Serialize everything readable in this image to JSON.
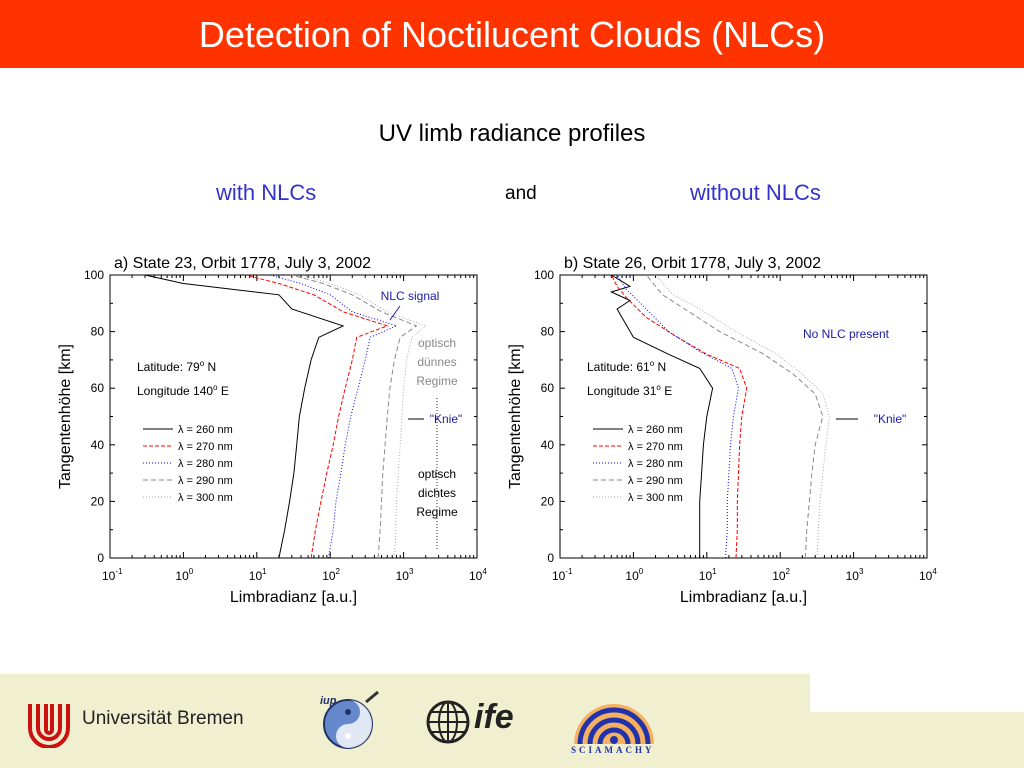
{
  "slide": {
    "title": "Detection of Noctilucent Clouds  (NLCs)",
    "subtitle": "UV limb radiance profiles",
    "with_label": "with NLCs",
    "and_label": "and",
    "without_label": "without NLCs"
  },
  "footer": {
    "university": "Universität Bremen",
    "logo_iup": "iup",
    "logo_ife": "ife",
    "logo_sciamachy": "SCIAMACHY"
  },
  "colors": {
    "title_bar": "#ff3300",
    "heading_blue": "#3333cc",
    "footer_bg": "#f0efd0",
    "annotation_blue": "#1a1aaa"
  },
  "chart_data": [
    {
      "type": "line",
      "title": "a) State 23, Orbit 1778, July 3, 2002",
      "xlabel": "Limbradianz [a.u.]",
      "ylabel": "Tangentenhöhe [km]",
      "xscale": "log",
      "xlim": [
        0.1,
        10000
      ],
      "ylim": [
        0,
        100
      ],
      "x_ticks": [
        {
          "base": "10",
          "exp": "-1"
        },
        {
          "base": "10",
          "exp": "0"
        },
        {
          "base": "10",
          "exp": "1"
        },
        {
          "base": "10",
          "exp": "2"
        },
        {
          "base": "10",
          "exp": "3"
        },
        {
          "base": "10",
          "exp": "4"
        }
      ],
      "y_ticks": [
        "0",
        "20",
        "40",
        "60",
        "80",
        "100"
      ],
      "info_lines": [
        {
          "text": "Latitude: 79",
          "sup": "o",
          "after": " N"
        },
        {
          "text": "Longitude 140",
          "sup": "o",
          "after": " E"
        }
      ],
      "legend_position": "left",
      "series": [
        {
          "name": "λ = 260 nm",
          "color": "#000000",
          "dash": "",
          "points": [
            [
              20,
              0
            ],
            [
              24,
              10
            ],
            [
              28,
              20
            ],
            [
              32,
              30
            ],
            [
              35,
              40
            ],
            [
              38,
              50
            ],
            [
              45,
              60
            ],
            [
              55,
              70
            ],
            [
              70,
              78
            ],
            [
              150,
              82
            ],
            [
              30,
              88
            ],
            [
              20,
              93
            ],
            [
              1,
              97
            ],
            [
              0.3,
              100
            ]
          ]
        },
        {
          "name": "λ = 270 nm",
          "color": "#ff0000",
          "dash": "4,2",
          "points": [
            [
              55,
              0
            ],
            [
              63,
              10
            ],
            [
              75,
              20
            ],
            [
              90,
              30
            ],
            [
              110,
              40
            ],
            [
              130,
              50
            ],
            [
              160,
              60
            ],
            [
              200,
              70
            ],
            [
              230,
              78
            ],
            [
              600,
              82
            ],
            [
              150,
              87
            ],
            [
              60,
              93
            ],
            [
              20,
              97
            ],
            [
              7,
              100
            ]
          ]
        },
        {
          "name": "λ = 280 nm",
          "color": "#0000ff",
          "dash": "1,2",
          "points": [
            [
              95,
              0
            ],
            [
              110,
              10
            ],
            [
              120,
              20
            ],
            [
              140,
              30
            ],
            [
              160,
              40
            ],
            [
              190,
              50
            ],
            [
              240,
              60
            ],
            [
              300,
              70
            ],
            [
              350,
              78
            ],
            [
              800,
              82
            ],
            [
              200,
              87
            ],
            [
              100,
              93
            ],
            [
              40,
              97
            ],
            [
              15,
              100
            ]
          ]
        },
        {
          "name": "λ = 290 nm",
          "color": "#888888",
          "dash": "5,3",
          "points": [
            [
              450,
              0
            ],
            [
              480,
              10
            ],
            [
              500,
              20
            ],
            [
              520,
              30
            ],
            [
              560,
              40
            ],
            [
              600,
              50
            ],
            [
              650,
              60
            ],
            [
              750,
              70
            ],
            [
              900,
              78
            ],
            [
              1500,
              82
            ],
            [
              500,
              87
            ],
            [
              200,
              93
            ],
            [
              80,
              97
            ],
            [
              30,
              100
            ]
          ]
        },
        {
          "name": "λ = 300 nm",
          "color": "#aaaaaa",
          "dash": "1,2",
          "points": [
            [
              750,
              0
            ],
            [
              780,
              10
            ],
            [
              800,
              20
            ],
            [
              850,
              30
            ],
            [
              900,
              40
            ],
            [
              950,
              50
            ],
            [
              1000,
              60
            ],
            [
              1100,
              70
            ],
            [
              1300,
              78
            ],
            [
              2000,
              82
            ],
            [
              600,
              87
            ],
            [
              250,
              93
            ],
            [
              100,
              97
            ],
            [
              40,
              100
            ]
          ]
        }
      ],
      "annotations": {
        "nlc_signal": "NLC signal",
        "thin_regime": [
          "optisch",
          "dünnes",
          "Regime"
        ],
        "knee": "\"Knie\"",
        "dense_regime": [
          "optisch",
          "dichtes",
          "Regime"
        ]
      }
    },
    {
      "type": "line",
      "title": "b) State 26, Orbit 1778, July 3, 2002",
      "xlabel": "Limbradianz [a.u.]",
      "ylabel": "Tangentenhöhe [km]",
      "xscale": "log",
      "xlim": [
        0.1,
        10000
      ],
      "ylim": [
        0,
        100
      ],
      "x_ticks": [
        {
          "base": "10",
          "exp": "-1"
        },
        {
          "base": "10",
          "exp": "0"
        },
        {
          "base": "10",
          "exp": "1"
        },
        {
          "base": "10",
          "exp": "2"
        },
        {
          "base": "10",
          "exp": "3"
        },
        {
          "base": "10",
          "exp": "4"
        }
      ],
      "y_ticks": [
        "0",
        "20",
        "40",
        "60",
        "80",
        "100"
      ],
      "info_lines": [
        {
          "text": "Latitude: 61",
          "sup": "o",
          "after": " N"
        },
        {
          "text": "Longitude 31",
          "sup": "o",
          "after": " E"
        }
      ],
      "legend_position": "left",
      "series": [
        {
          "name": "λ = 260 nm",
          "color": "#000000",
          "dash": "",
          "points": [
            [
              8,
              0
            ],
            [
              8,
              10
            ],
            [
              8,
              20
            ],
            [
              8.5,
              30
            ],
            [
              9,
              40
            ],
            [
              10,
              50
            ],
            [
              12,
              60
            ],
            [
              8,
              67
            ],
            [
              3,
              72
            ],
            [
              1,
              78
            ],
            [
              0.6,
              88
            ],
            [
              0.9,
              91
            ],
            [
              0.5,
              94
            ],
            [
              0.9,
              96
            ],
            [
              0.5,
              100
            ]
          ]
        },
        {
          "name": "λ = 270 nm",
          "color": "#ff0000",
          "dash": "4,2",
          "points": [
            [
              25,
              0
            ],
            [
              26,
              10
            ],
            [
              26,
              20
            ],
            [
              27,
              30
            ],
            [
              28,
              40
            ],
            [
              30,
              50
            ],
            [
              35,
              60
            ],
            [
              28,
              67
            ],
            [
              10,
              72
            ],
            [
              4,
              78
            ],
            [
              1.5,
              85
            ],
            [
              0.8,
              92
            ],
            [
              0.6,
              96
            ],
            [
              0.5,
              100
            ]
          ]
        },
        {
          "name": "λ = 280 nm",
          "color": "#0000ff",
          "dash": "1,2",
          "points": [
            [
              18,
              0
            ],
            [
              19,
              10
            ],
            [
              19,
              20
            ],
            [
              20,
              30
            ],
            [
              21,
              40
            ],
            [
              23,
              50
            ],
            [
              27,
              60
            ],
            [
              22,
              67
            ],
            [
              8,
              73
            ],
            [
              3,
              80
            ],
            [
              1.5,
              88
            ],
            [
              0.8,
              95
            ],
            [
              0.6,
              100
            ]
          ]
        },
        {
          "name": "λ = 290 nm",
          "color": "#888888",
          "dash": "5,3",
          "points": [
            [
              220,
              0
            ],
            [
              230,
              10
            ],
            [
              250,
              20
            ],
            [
              270,
              30
            ],
            [
              300,
              40
            ],
            [
              380,
              50
            ],
            [
              300,
              58
            ],
            [
              150,
              65
            ],
            [
              60,
              72
            ],
            [
              15,
              80
            ],
            [
              5,
              88
            ],
            [
              2.5,
              93
            ],
            [
              1.5,
              100
            ]
          ]
        },
        {
          "name": "λ = 300 nm",
          "color": "#aaaaaa",
          "dash": "1,2",
          "points": [
            [
              320,
              0
            ],
            [
              330,
              10
            ],
            [
              350,
              20
            ],
            [
              380,
              30
            ],
            [
              420,
              40
            ],
            [
              470,
              50
            ],
            [
              380,
              58
            ],
            [
              200,
              65
            ],
            [
              90,
              72
            ],
            [
              25,
              80
            ],
            [
              8,
              88
            ],
            [
              3.5,
              93
            ],
            [
              2,
              100
            ]
          ]
        }
      ],
      "annotations": {
        "no_nlc": "No NLC present",
        "knee": "\"Knie\""
      }
    }
  ]
}
